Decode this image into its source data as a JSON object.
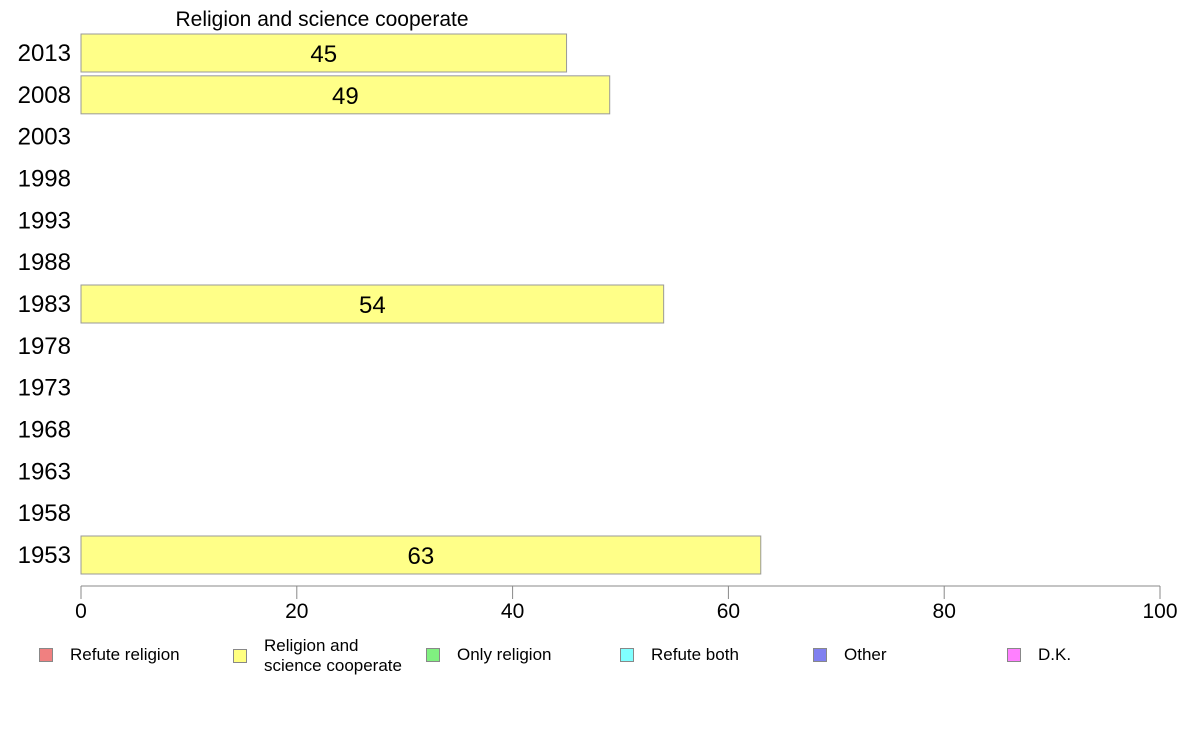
{
  "chart_data": {
    "type": "bar",
    "orientation": "horizontal",
    "title": "Religion and science cooperate",
    "categories": [
      "2013",
      "2008",
      "2003",
      "1998",
      "1993",
      "1988",
      "1983",
      "1978",
      "1973",
      "1968",
      "1963",
      "1958",
      "1953"
    ],
    "series": [
      {
        "name": "Religion and science cooperate",
        "color": "#ffff88",
        "values": [
          45,
          49,
          null,
          null,
          null,
          null,
          54,
          null,
          null,
          null,
          null,
          null,
          63
        ]
      }
    ],
    "xlim": [
      0,
      100
    ],
    "xticks": [
      0,
      20,
      40,
      60,
      80,
      100
    ],
    "xlabel": "",
    "ylabel": "",
    "grid": false,
    "legend_position": "bottom"
  },
  "legend": [
    {
      "label": "Refute religion",
      "color": "#f08080"
    },
    {
      "label": "Religion and\nscience cooperate",
      "color": "#ffff80"
    },
    {
      "label": "Only religion",
      "color": "#80f080"
    },
    {
      "label": "Refute both",
      "color": "#80ffff"
    },
    {
      "label": "Other",
      "color": "#8080f0"
    },
    {
      "label": "D.K.",
      "color": "#ff80ff"
    }
  ]
}
